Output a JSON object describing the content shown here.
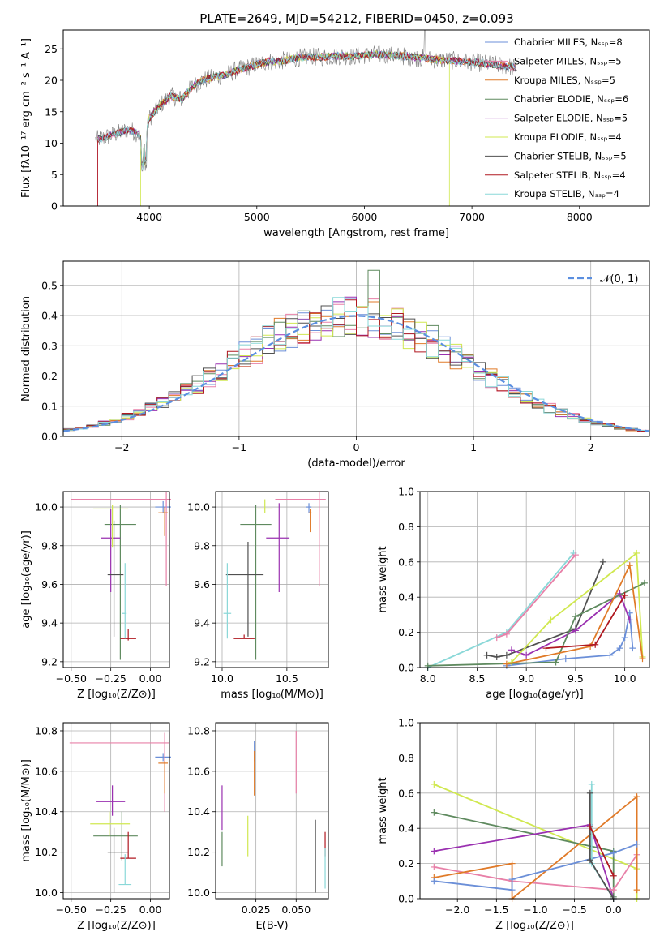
{
  "figure_title": "PLATE=2649, MJD=54212, FIBERID=0450, z=0.093",
  "colors": {
    "Chabrier MILES": "#6b8fd8",
    "Salpeter MILES": "#e880a8",
    "Kroupa MILES": "#e07a28",
    "Chabrier ELODIE": "#5f8a5f",
    "Salpeter ELODIE": "#9a30b0",
    "Kroupa ELODIE": "#d0e850",
    "Chabrier STELIB": "#505050",
    "Salpeter STELIB": "#b01820",
    "Kroupa STELIB": "#8ad8d8",
    "gaussian": "#5b8fe0"
  },
  "chart_data": [
    {
      "id": "spectrum",
      "type": "line",
      "xlabel": "wavelength [Angstrom, rest frame]",
      "ylabel": "Flux [fλ10⁻¹⁷ erg cm⁻² s⁻¹ A⁻¹]",
      "xlim": [
        3200,
        8650
      ],
      "ylim": [
        0,
        28
      ],
      "xticks": [
        4000,
        5000,
        6000,
        7000,
        8000
      ],
      "yticks": [
        0,
        5,
        10,
        15,
        20,
        25
      ],
      "grid": false,
      "legend_position": "top-right",
      "legend": [
        "Chabrier MILES, Nₛₛₚ=8",
        "Salpeter MILES, Nₛₛₚ=5",
        "Kroupa MILES, Nₛₛₚ=5",
        "Chabrier ELODIE, Nₛₛₚ=6",
        "Salpeter ELODIE, Nₛₛₚ=5",
        "Kroupa ELODIE, Nₛₛₚ=4",
        "Chabrier STELIB, Nₛₛₚ=5",
        "Salpeter STELIB, Nₛₛₚ=4",
        "Kroupa STELIB, Nₛₛₚ=4"
      ],
      "continuum": [
        [
          3500,
          10.5
        ],
        [
          3600,
          11.0
        ],
        [
          3700,
          11.5
        ],
        [
          3800,
          12.2
        ],
        [
          3900,
          11.5
        ],
        [
          3950,
          9.5
        ],
        [
          4000,
          14.0
        ],
        [
          4100,
          16.0
        ],
        [
          4200,
          17.5
        ],
        [
          4300,
          17.0
        ],
        [
          4400,
          19.0
        ],
        [
          4500,
          20.0
        ],
        [
          4600,
          20.5
        ],
        [
          4700,
          20.8
        ],
        [
          4800,
          21.5
        ],
        [
          4900,
          22.0
        ],
        [
          5000,
          22.5
        ],
        [
          5100,
          23.0
        ],
        [
          5200,
          23.0
        ],
        [
          5300,
          23.3
        ],
        [
          5400,
          23.6
        ],
        [
          5500,
          23.7
        ],
        [
          5600,
          23.7
        ],
        [
          5700,
          23.8
        ],
        [
          5800,
          23.9
        ],
        [
          5900,
          23.8
        ],
        [
          6000,
          24.0
        ],
        [
          6100,
          24.1
        ],
        [
          6200,
          24.0
        ],
        [
          6300,
          23.9
        ],
        [
          6400,
          23.8
        ],
        [
          6500,
          23.6
        ],
        [
          6600,
          23.4
        ],
        [
          6700,
          23.2
        ],
        [
          6800,
          23.2
        ],
        [
          6900,
          23.0
        ],
        [
          7000,
          22.9
        ],
        [
          7100,
          22.7
        ],
        [
          7200,
          22.5
        ],
        [
          7300,
          22.3
        ],
        [
          7400,
          22.0
        ]
      ],
      "cutoffs": {
        "Salpeter STELIB": [
          3520,
          7410
        ],
        "Salpeter MILES": [
          3520,
          7410
        ],
        "Kroupa ELODIE": [
          3920,
          6790
        ],
        "Chabrier MILES": [
          3520,
          7410
        ]
      }
    },
    {
      "id": "residuals",
      "type": "histogram",
      "xlabel": "(data-model)/error",
      "ylabel": "Normed distribution",
      "xlim": [
        -2.5,
        2.5
      ],
      "ylim": [
        0,
        0.58
      ],
      "xticks": [
        -2,
        -1,
        0,
        1,
        2
      ],
      "yticks": [
        0.0,
        0.1,
        0.2,
        0.3,
        0.4,
        0.5
      ],
      "grid": true,
      "legend_position": "top-right",
      "legend": [
        "𝒩(0, 1)"
      ],
      "bin_width": 0.1,
      "bin_start": -2.5,
      "reference_curve": "normal(0,1)"
    },
    {
      "id": "age_vs_Z",
      "type": "errorbar",
      "xlabel": "Z [log₁₀(Z/Z⊙)]",
      "ylabel": "age  [log₁₀(age/yr)]",
      "xlim": [
        -0.55,
        0.12
      ],
      "ylim": [
        9.17,
        10.08
      ],
      "xticks": [
        -0.5,
        -0.25,
        0.0
      ],
      "yticks": [
        9.2,
        9.4,
        9.6,
        9.8,
        10.0
      ],
      "grid": true,
      "points": [
        {
          "model": "Chabrier MILES",
          "x": 0.08,
          "xerr": [
            0.05,
            0.05
          ],
          "y": 10.0,
          "yerr": [
            0.03,
            0.03
          ]
        },
        {
          "model": "Salpeter MILES",
          "x": 0.1,
          "xerr": [
            0.6,
            0.03
          ],
          "y": 10.04,
          "yerr": [
            0.45,
            0.04
          ]
        },
        {
          "model": "Kroupa MILES",
          "x": 0.09,
          "xerr": [
            0.04,
            0.02
          ],
          "y": 9.97,
          "yerr": [
            0.12,
            0.03
          ]
        },
        {
          "model": "Chabrier ELODIE",
          "x": -0.19,
          "xerr": [
            0.1,
            0.1
          ],
          "y": 9.91,
          "yerr": [
            0.7,
            0.1
          ]
        },
        {
          "model": "Salpeter ELODIE",
          "x": -0.25,
          "xerr": [
            0.06,
            0.06
          ],
          "y": 9.84,
          "yerr": [
            0.28,
            0.15
          ]
        },
        {
          "model": "Kroupa ELODIE",
          "x": -0.24,
          "xerr": [
            0.12,
            0.1
          ],
          "y": 9.99,
          "yerr": [
            0.2,
            0.02
          ]
        },
        {
          "model": "Chabrier STELIB",
          "x": -0.23,
          "xerr": [
            0.04,
            0.06
          ],
          "y": 9.65,
          "yerr": [
            0.32,
            0.28
          ]
        },
        {
          "model": "Salpeter STELIB",
          "x": -0.14,
          "xerr": [
            0.05,
            0.05
          ],
          "y": 9.32,
          "yerr": [
            0.01,
            0.05
          ]
        },
        {
          "model": "Kroupa STELIB",
          "x": -0.16,
          "xerr": [
            0.02,
            0.01
          ],
          "y": 9.45,
          "yerr": [
            0.13,
            0.26
          ]
        }
      ]
    },
    {
      "id": "age_vs_mass",
      "type": "errorbar",
      "xlabel": "mass [log₁₀(M/M⊙)]",
      "ylabel": "",
      "xlim": [
        9.95,
        10.82
      ],
      "ylim": [
        9.17,
        10.08
      ],
      "xticks": [
        10.0,
        10.5
      ],
      "yticks": [
        9.2,
        9.4,
        9.6,
        9.8,
        10.0
      ],
      "grid": true,
      "points": [
        {
          "model": "Chabrier MILES",
          "x": 10.67,
          "xerr": [
            0.02,
            0.02
          ],
          "y": 10.0,
          "yerr": [
            0.03,
            0.02
          ]
        },
        {
          "model": "Salpeter MILES",
          "x": 10.75,
          "xerr": [
            0.34,
            0.05
          ],
          "y": 10.04,
          "yerr": [
            0.45,
            0.04
          ]
        },
        {
          "model": "Kroupa MILES",
          "x": 10.68,
          "xerr": [
            0.01,
            0.01
          ],
          "y": 9.97,
          "yerr": [
            0.1,
            0.02
          ]
        },
        {
          "model": "Chabrier ELODIE",
          "x": 10.26,
          "xerr": [
            0.12,
            0.12
          ],
          "y": 9.91,
          "yerr": [
            0.7,
            0.1
          ]
        },
        {
          "model": "Salpeter ELODIE",
          "x": 10.44,
          "xerr": [
            0.1,
            0.08
          ],
          "y": 9.84,
          "yerr": [
            0.28,
            0.18
          ]
        },
        {
          "model": "Kroupa ELODIE",
          "x": 10.33,
          "xerr": [
            0.06,
            0.06
          ],
          "y": 9.99,
          "yerr": [
            0.02,
            0.05
          ]
        },
        {
          "model": "Chabrier STELIB",
          "x": 10.2,
          "xerr": [
            0.17,
            0.12
          ],
          "y": 9.65,
          "yerr": [
            0.32,
            0.17
          ]
        },
        {
          "model": "Salpeter STELIB",
          "x": 10.17,
          "xerr": [
            0.08,
            0.08
          ],
          "y": 9.32,
          "yerr": [
            0.0,
            0.02
          ]
        },
        {
          "model": "Kroupa STELIB",
          "x": 10.04,
          "xerr": [
            0.03,
            0.03
          ],
          "y": 9.45,
          "yerr": [
            0.13,
            0.26
          ]
        }
      ]
    },
    {
      "id": "mass_vs_Z",
      "type": "errorbar",
      "xlabel": "Z [log₁₀(Z/Z⊙)]",
      "ylabel": "mass [log₁₀(M/M⊙)]",
      "xlim": [
        -0.55,
        0.12
      ],
      "ylim": [
        9.97,
        10.84
      ],
      "xticks": [
        -0.5,
        -0.25,
        0.0
      ],
      "yticks": [
        10.0,
        10.2,
        10.4,
        10.6,
        10.8
      ],
      "grid": true,
      "points": [
        {
          "model": "Chabrier MILES",
          "x": 0.08,
          "xerr": [
            0.05,
            0.05
          ],
          "y": 10.67,
          "yerr": [
            0.02,
            0.02
          ]
        },
        {
          "model": "Salpeter MILES",
          "x": 0.09,
          "xerr": [
            0.6,
            0.03
          ],
          "y": 10.74,
          "yerr": [
            0.34,
            0.05
          ]
        },
        {
          "model": "Kroupa MILES",
          "x": 0.09,
          "xerr": [
            0.04,
            0.02
          ],
          "y": 10.64,
          "yerr": [
            0.15,
            0.01
          ]
        },
        {
          "model": "Chabrier ELODIE",
          "x": -0.18,
          "xerr": [
            0.18,
            0.1
          ],
          "y": 10.28,
          "yerr": [
            0.12,
            0.12
          ]
        },
        {
          "model": "Salpeter ELODIE",
          "x": -0.24,
          "xerr": [
            0.1,
            0.08
          ],
          "y": 10.45,
          "yerr": [
            0.07,
            0.08
          ]
        },
        {
          "model": "Kroupa ELODIE",
          "x": -0.26,
          "xerr": [
            0.12,
            0.13
          ],
          "y": 10.34,
          "yerr": [
            0.06,
            0.06
          ]
        },
        {
          "model": "Chabrier STELIB",
          "x": -0.23,
          "xerr": [
            0.04,
            0.09
          ],
          "y": 10.2,
          "yerr": [
            0.2,
            0.12
          ]
        },
        {
          "model": "Salpeter STELIB",
          "x": -0.14,
          "xerr": [
            0.05,
            0.05
          ],
          "y": 10.17,
          "yerr": [
            0.0,
            0.13
          ]
        },
        {
          "model": "Kroupa STELIB",
          "x": -0.16,
          "xerr": [
            0.04,
            0.04
          ],
          "y": 10.04,
          "yerr": [
            0.0,
            0.15
          ]
        }
      ]
    },
    {
      "id": "mass_vs_EBV",
      "type": "errorbar",
      "xlabel": "E(B-V)",
      "ylabel": "",
      "xlim": [
        0.0,
        0.07
      ],
      "ylim": [
        9.97,
        10.84
      ],
      "xticks": [
        0.025,
        0.05
      ],
      "yticks": [
        10.0,
        10.2,
        10.4,
        10.6,
        10.8
      ],
      "grid": true,
      "points": [
        {
          "model": "Chabrier MILES",
          "x": 0.024,
          "xerr": [
            0,
            0
          ],
          "y": 10.67,
          "yerr": [
            0.02,
            0.08
          ]
        },
        {
          "model": "Salpeter MILES",
          "x": 0.05,
          "xerr": [
            0,
            0
          ],
          "y": 10.65,
          "yerr": [
            0.16,
            0.15
          ]
        },
        {
          "model": "Kroupa MILES",
          "x": 0.024,
          "xerr": [
            0,
            0
          ],
          "y": 10.6,
          "yerr": [
            0.12,
            0.1
          ]
        },
        {
          "model": "Chabrier ELODIE",
          "x": 0.004,
          "xerr": [
            0,
            0
          ],
          "y": 10.2,
          "yerr": [
            0.07,
            0.1
          ]
        },
        {
          "model": "Salpeter ELODIE",
          "x": 0.004,
          "xerr": [
            0,
            0
          ],
          "y": 10.45,
          "yerr": [
            0.14,
            0.08
          ]
        },
        {
          "model": "Kroupa ELODIE",
          "x": 0.02,
          "xerr": [
            0,
            0
          ],
          "y": 10.28,
          "yerr": [
            0.1,
            0.1
          ]
        },
        {
          "model": "Chabrier STELIB",
          "x": 0.062,
          "xerr": [
            0,
            0
          ],
          "y": 10.2,
          "yerr": [
            0.2,
            0.16
          ]
        },
        {
          "model": "Salpeter STELIB",
          "x": 0.068,
          "xerr": [
            0,
            0
          ],
          "y": 10.25,
          "yerr": [
            0.07,
            0.05
          ]
        },
        {
          "model": "Kroupa STELIB",
          "x": 0.068,
          "xerr": [
            0,
            0
          ],
          "y": 10.12,
          "yerr": [
            0.1,
            0.1
          ]
        }
      ]
    },
    {
      "id": "weight_vs_age",
      "type": "line",
      "xlabel": "age  [log₁₀(age/yr)]",
      "ylabel": "mass weight",
      "xlim": [
        7.92,
        10.25
      ],
      "ylim": [
        0,
        1
      ],
      "xticks": [
        8.0,
        8.5,
        9.0,
        9.5,
        10.0
      ],
      "yticks": [
        0.0,
        0.2,
        0.4,
        0.6,
        0.8,
        1.0
      ],
      "grid": true,
      "series": [
        {
          "model": "Kroupa STELIB",
          "x": [
            8.0,
            8.8,
            9.48
          ],
          "y": [
            0.0,
            0.2,
            0.65
          ]
        },
        {
          "model": "Salpeter MILES",
          "x": [
            8.7,
            8.8,
            9.5
          ],
          "y": [
            0.17,
            0.19,
            0.64
          ]
        },
        {
          "model": "Chabrier MILES",
          "x": [
            8.8,
            9.4,
            9.85,
            9.95,
            10.0,
            10.05,
            10.08
          ],
          "y": [
            0.01,
            0.05,
            0.07,
            0.11,
            0.17,
            0.31,
            0.11
          ]
        },
        {
          "model": "Chabrier STELIB",
          "x": [
            8.6,
            8.7,
            8.8,
            9.5,
            9.78
          ],
          "y": [
            0.07,
            0.06,
            0.07,
            0.22,
            0.6
          ]
        },
        {
          "model": "Salpeter ELODIE",
          "x": [
            8.85,
            9.0,
            9.5,
            9.95,
            10.05
          ],
          "y": [
            0.1,
            0.07,
            0.21,
            0.42,
            0.27
          ]
        },
        {
          "model": "Kroupa ELODIE",
          "x": [
            8.85,
            9.25,
            10.12,
            10.18
          ],
          "y": [
            0.03,
            0.27,
            0.65,
            0.06
          ]
        },
        {
          "model": "Chabrier ELODIE",
          "x": [
            8.0,
            9.3,
            9.5,
            10.2
          ],
          "y": [
            0.01,
            0.03,
            0.29,
            0.48
          ]
        },
        {
          "model": "Kroupa MILES",
          "x": [
            8.8,
            9.65,
            10.05,
            10.18
          ],
          "y": [
            0.02,
            0.12,
            0.58,
            0.05
          ]
        },
        {
          "model": "Salpeter STELIB",
          "x": [
            9.2,
            9.7,
            10.0
          ],
          "y": [
            0.11,
            0.13,
            0.41
          ]
        }
      ]
    },
    {
      "id": "weight_vs_Z",
      "type": "line",
      "xlabel": "Z [log₁₀(Z/Z⊙)]",
      "ylabel": "mass weight",
      "xlim": [
        -2.48,
        0.46
      ],
      "ylim": [
        0,
        1
      ],
      "xticks": [
        -2.0,
        -1.5,
        -1.0,
        -0.5,
        0.0
      ],
      "yticks": [
        0.0,
        0.2,
        0.4,
        0.6,
        0.8,
        1.0
      ],
      "grid": true,
      "series": [
        {
          "model": "Kroupa ELODIE",
          "x": [
            -2.3,
            0.3,
            0.3
          ],
          "y": [
            0.65,
            0.17,
            0.0
          ]
        },
        {
          "model": "Chabrier ELODIE",
          "x": [
            -2.3,
            0.0,
            0.0
          ],
          "y": [
            0.49,
            0.27,
            0.01
          ]
        },
        {
          "model": "Salpeter ELODIE",
          "x": [
            -2.3,
            -0.3,
            0.0
          ],
          "y": [
            0.27,
            0.42,
            0.0
          ]
        },
        {
          "model": "Salpeter MILES",
          "x": [
            -2.3,
            -1.3,
            0.0,
            0.3
          ],
          "y": [
            0.18,
            0.1,
            0.05,
            0.25
          ]
        },
        {
          "model": "Kroupa MILES",
          "x": [
            -2.3,
            -1.3,
            -1.3,
            0.3,
            0.3
          ],
          "y": [
            0.12,
            0.2,
            0.0,
            0.58,
            0.05
          ]
        },
        {
          "model": "Chabrier MILES",
          "x": [
            -2.3,
            -1.3,
            -1.3,
            0.0,
            0.3
          ],
          "y": [
            0.1,
            0.05,
            0.11,
            0.26,
            0.31
          ]
        },
        {
          "model": "Kroupa STELIB",
          "x": [
            -0.28,
            -0.28,
            0.0
          ],
          "y": [
            0.65,
            0.2,
            0.0
          ]
        },
        {
          "model": "Chabrier STELIB",
          "x": [
            -0.3,
            -0.3,
            0.0
          ],
          "y": [
            0.6,
            0.22,
            0.0
          ]
        },
        {
          "model": "Salpeter STELIB",
          "x": [
            -0.3,
            0.0
          ],
          "y": [
            0.41,
            0.13
          ]
        }
      ]
    }
  ]
}
